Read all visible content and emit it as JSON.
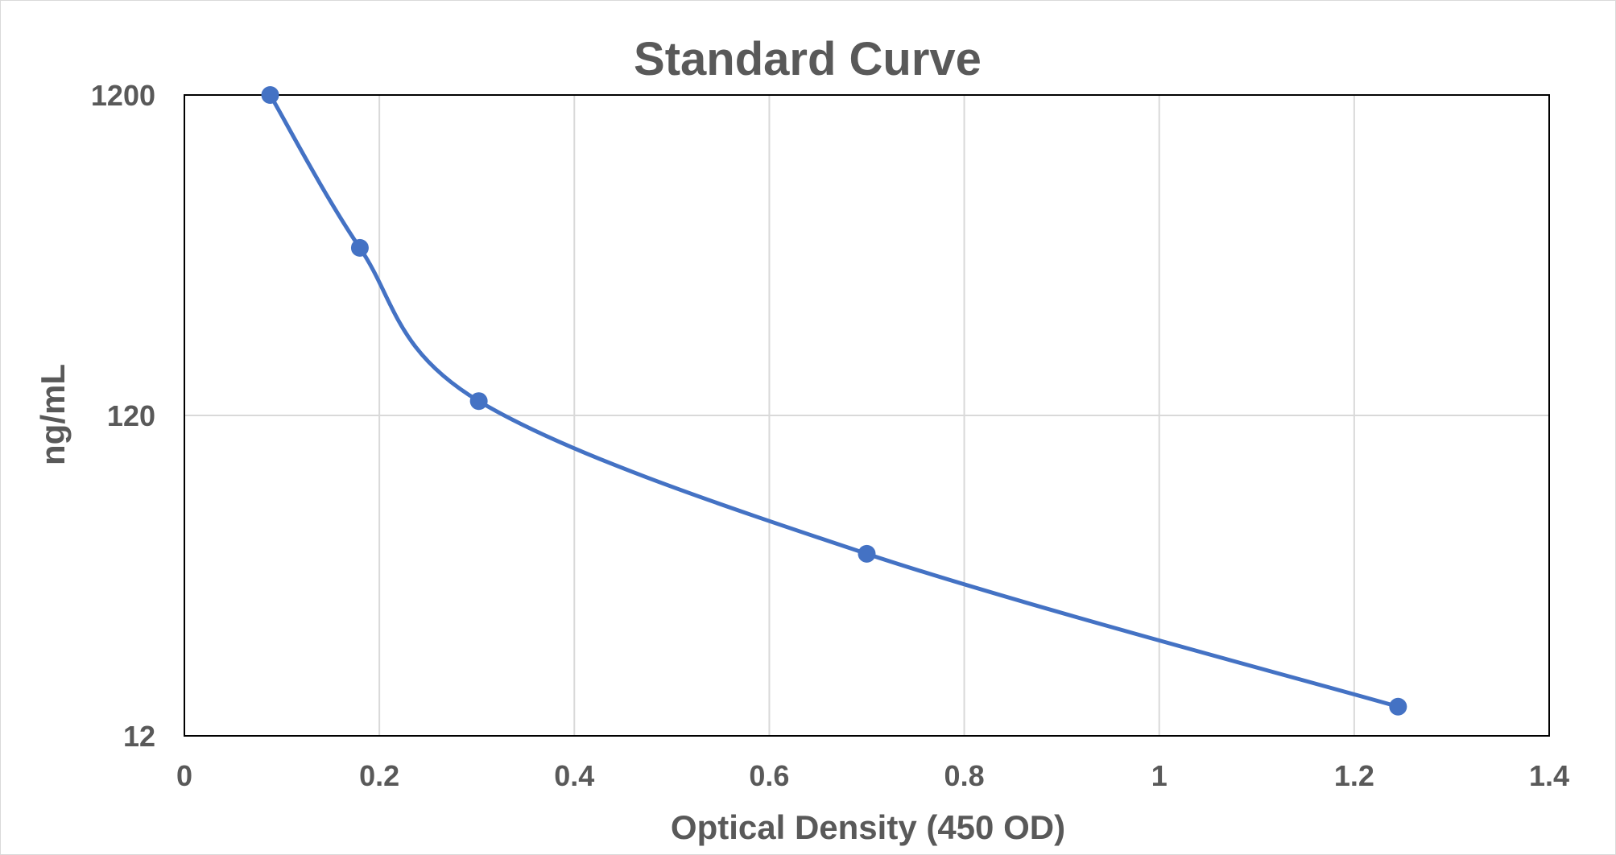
{
  "chart_data": {
    "type": "scatter",
    "title": "Standard Curve",
    "xlabel": "Optical Density (450 OD)",
    "ylabel": "ng/mL",
    "xlim": [
      0,
      1.4
    ],
    "ylim": [
      12,
      1200
    ],
    "yscale": "log",
    "grid": true,
    "smooth_line": true,
    "x_ticks": [
      "0",
      "0.2",
      "0.4",
      "0.6",
      "0.8",
      "1",
      "1.2",
      "1.4"
    ],
    "y_ticks": [
      "12",
      "120",
      "1200"
    ],
    "series": [
      {
        "color": "#4472c4",
        "points": [
          {
            "x": 0.088,
            "y": 1200
          },
          {
            "x": 0.18,
            "y": 400
          },
          {
            "x": 0.302,
            "y": 133
          },
          {
            "x": 0.7,
            "y": 44.4
          },
          {
            "x": 1.245,
            "y": 14.8
          }
        ]
      }
    ]
  }
}
